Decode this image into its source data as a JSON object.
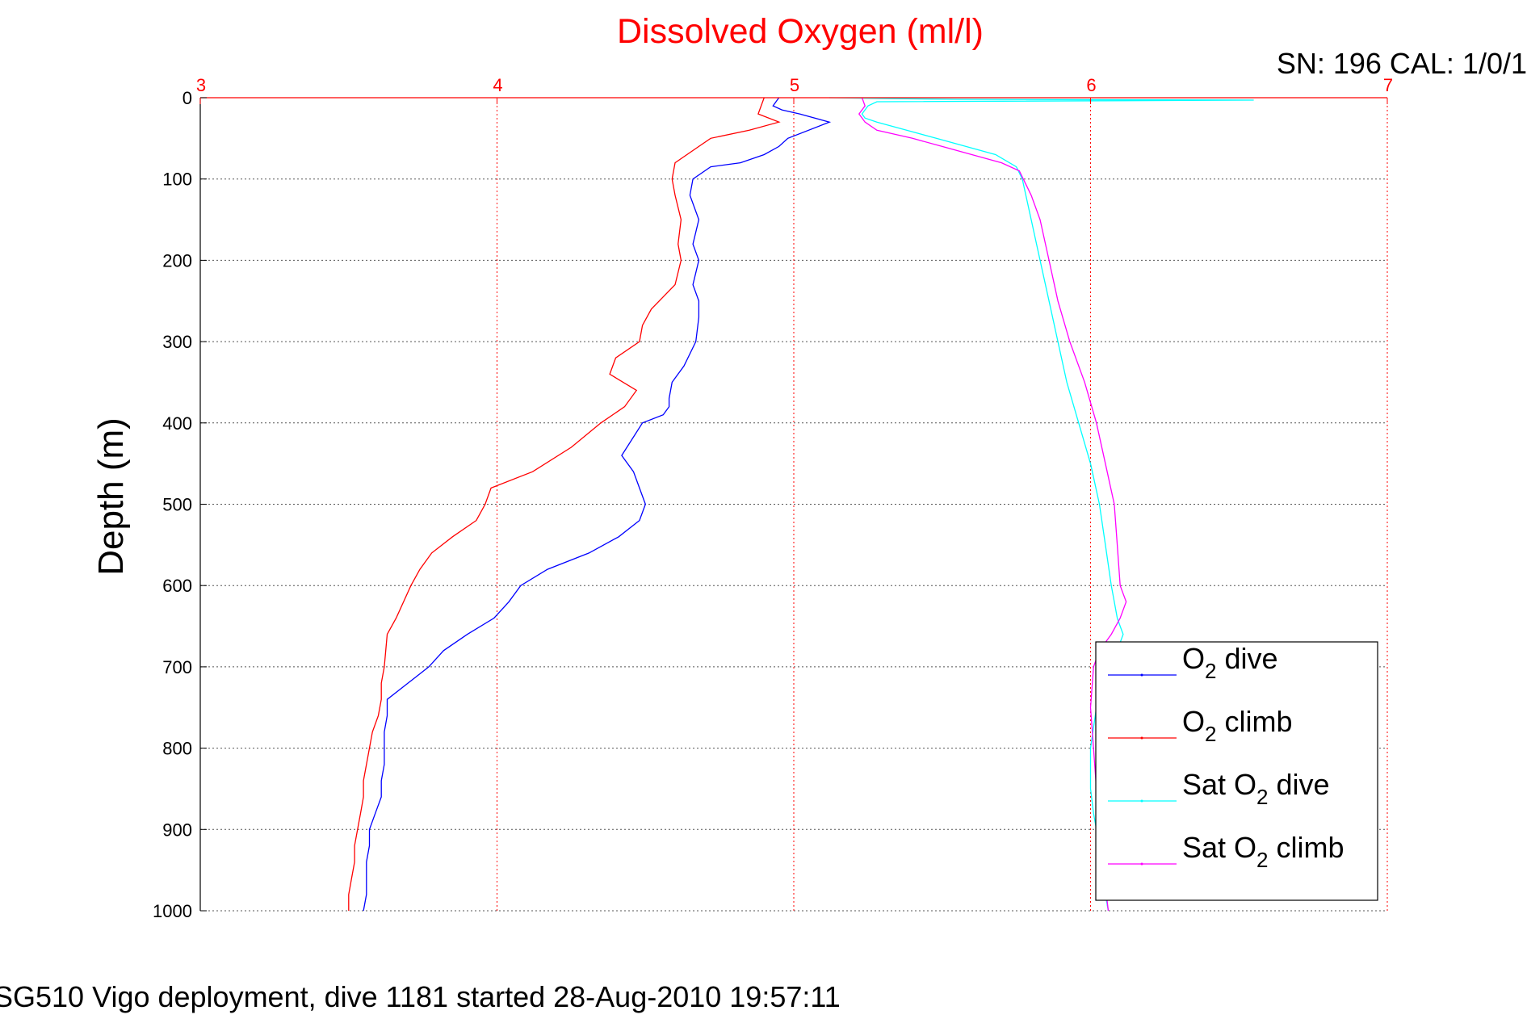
{
  "figure": {
    "sn_cal": "SN: 196  CAL: 1/0/1",
    "footer": "SG510 Vigo deployment, dive 1181 started 28-Aug-2010 19:57:11"
  },
  "colors": {
    "axis_top": "#ff0000",
    "axis_left": "#000000",
    "dive": "#0000ff",
    "climb": "#ff0000",
    "sat_dive": "#00ffff",
    "sat_climb": "#ff00ff",
    "grid": "#555555"
  },
  "chart_data": {
    "type": "line",
    "title": "Dissolved Oxygen (ml/l)",
    "xlabel": "",
    "ylabel": "Depth (m)",
    "xlim": [
      3,
      7
    ],
    "ylim": [
      0,
      1000
    ],
    "y_reversed": true,
    "xticks": [
      3,
      4,
      5,
      6,
      7
    ],
    "yticks": [
      0,
      100,
      200,
      300,
      400,
      500,
      600,
      700,
      800,
      900,
      1000
    ],
    "grid": true,
    "legend_position": "bottom-right",
    "series": [
      {
        "name": "O2 dive",
        "legend_main": "O",
        "legend_sub": "2",
        "legend_rest": " dive",
        "color": "#0000ff",
        "x": [
          4.95,
          4.93,
          4.96,
          5.02,
          5.12,
          4.98,
          4.95,
          4.9,
          4.82,
          4.72,
          4.66,
          4.65,
          4.68,
          4.66,
          4.68,
          4.66,
          4.68,
          4.68,
          4.67,
          4.63,
          4.59,
          4.58,
          4.58,
          4.56,
          4.49,
          4.42,
          4.46,
          4.48,
          4.5,
          4.48,
          4.41,
          4.31,
          4.17,
          4.08,
          4.04,
          3.99,
          3.9,
          3.82,
          3.77,
          3.7,
          3.63,
          3.63,
          3.62,
          3.62,
          3.62,
          3.61,
          3.61,
          3.59,
          3.57,
          3.57,
          3.56,
          3.56,
          3.56,
          3.55
        ],
        "y": [
          0,
          10,
          15,
          20,
          30,
          50,
          60,
          70,
          80,
          85,
          100,
          120,
          150,
          180,
          200,
          230,
          250,
          270,
          300,
          330,
          350,
          370,
          380,
          390,
          400,
          440,
          460,
          480,
          500,
          520,
          540,
          560,
          580,
          600,
          620,
          640,
          660,
          680,
          700,
          720,
          740,
          760,
          780,
          800,
          820,
          840,
          860,
          880,
          900,
          920,
          940,
          960,
          980,
          1000
        ]
      },
      {
        "name": "O2 climb",
        "legend_main": "O",
        "legend_sub": "2",
        "legend_rest": " climb",
        "color": "#ff0000",
        "x": [
          4.9,
          4.88,
          4.95,
          4.85,
          4.72,
          4.68,
          4.6,
          4.59,
          4.6,
          4.62,
          4.61,
          4.62,
          4.6,
          4.52,
          4.49,
          4.48,
          4.4,
          4.38,
          4.47,
          4.43,
          4.35,
          4.25,
          4.12,
          3.98,
          3.96,
          3.93,
          3.85,
          3.78,
          3.74,
          3.71,
          3.66,
          3.63,
          3.62,
          3.61,
          3.61,
          3.6,
          3.58,
          3.57,
          3.56,
          3.55,
          3.55,
          3.54,
          3.53,
          3.52,
          3.52,
          3.51,
          3.5,
          3.5
        ],
        "y": [
          0,
          20,
          30,
          40,
          50,
          60,
          80,
          100,
          120,
          150,
          180,
          200,
          230,
          260,
          280,
          300,
          320,
          340,
          360,
          380,
          400,
          430,
          460,
          480,
          500,
          520,
          540,
          560,
          580,
          600,
          640,
          660,
          700,
          720,
          740,
          760,
          780,
          800,
          820,
          840,
          860,
          880,
          900,
          920,
          940,
          960,
          980,
          1000
        ]
      },
      {
        "name": "Sat O2 dive",
        "legend_main": "Sat O",
        "legend_sub": "2",
        "legend_rest": " dive",
        "color": "#00ffff",
        "x": [
          5.12,
          5.3,
          5.55,
          6.55,
          5.28,
          5.25,
          5.24,
          5.23,
          5.24,
          5.28,
          5.38,
          5.48,
          5.58,
          5.68,
          5.75,
          5.77,
          5.8,
          5.83,
          5.86,
          5.89,
          5.92,
          5.96,
          6.0,
          6.03,
          6.05,
          6.07,
          6.08,
          6.09,
          6.1,
          6.11,
          6.1,
          6.07,
          6.02,
          6.0,
          6.0,
          6.01,
          6.02,
          6.03,
          6.04,
          6.05,
          6.06
        ],
        "y": [
          0,
          1,
          2,
          3,
          5,
          10,
          15,
          20,
          25,
          30,
          40,
          50,
          60,
          70,
          85,
          100,
          150,
          200,
          250,
          300,
          350,
          400,
          450,
          500,
          550,
          600,
          620,
          640,
          650,
          660,
          670,
          700,
          750,
          800,
          850,
          880,
          900,
          920,
          950,
          980,
          1000
        ]
      },
      {
        "name": "Sat O2 climb",
        "legend_main": "Sat O",
        "legend_sub": "2",
        "legend_rest": " climb",
        "color": "#ff00ff",
        "x": [
          5.23,
          5.24,
          5.22,
          5.24,
          5.28,
          5.4,
          5.5,
          5.6,
          5.7,
          5.76,
          5.8,
          5.83,
          5.86,
          5.89,
          5.93,
          5.98,
          6.02,
          6.05,
          6.08,
          6.09,
          6.1,
          6.11,
          6.12,
          6.1,
          6.07,
          6.03,
          6.01,
          6.0,
          6.01,
          6.02,
          6.03,
          6.04,
          6.05,
          6.06
        ],
        "y": [
          0,
          10,
          20,
          30,
          40,
          50,
          60,
          70,
          80,
          90,
          120,
          150,
          200,
          250,
          300,
          350,
          400,
          450,
          500,
          550,
          600,
          610,
          620,
          640,
          660,
          680,
          700,
          750,
          800,
          850,
          900,
          940,
          970,
          1000
        ]
      }
    ]
  }
}
